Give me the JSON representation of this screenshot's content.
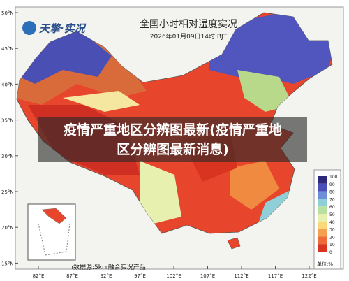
{
  "logo": "天擎·实况",
  "title": "全国小时相对湿度实况",
  "subtitle": "2026年01月09日14时 BJT",
  "overlay": {
    "line1": "疫情严重地区分辨图最新(疫情严重地",
    "line2": "区分辨图最新消息)"
  },
  "latitudes": [
    "50°N",
    "45°N",
    "40°N",
    "35°N",
    "30°N",
    "25°N",
    "20°N",
    "15°N"
  ],
  "longitudes": [
    "82°E",
    "87°E",
    "92°E",
    "97°E",
    "102°E",
    "107°E",
    "112°E",
    "117°E",
    "122°E"
  ],
  "legend": {
    "labels": [
      "100",
      "90",
      "80",
      "70",
      "60",
      "50",
      "40",
      "30",
      "20",
      "10",
      "0"
    ],
    "unit": "单位:%"
  },
  "source": "数据源:5km融合实况产品"
}
